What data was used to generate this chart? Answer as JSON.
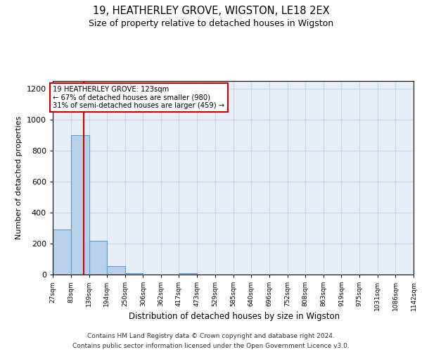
{
  "title": "19, HEATHERLEY GROVE, WIGSTON, LE18 2EX",
  "subtitle": "Size of property relative to detached houses in Wigston",
  "xlabel": "Distribution of detached houses by size in Wigston",
  "ylabel": "Number of detached properties",
  "property_size": 123,
  "annotation_lines": [
    "19 HEATHERLEY GROVE: 123sqm",
    "← 67% of detached houses are smaller (980)",
    "31% of semi-detached houses are larger (459) →"
  ],
  "bin_edges": [
    27,
    83,
    139,
    194,
    250,
    306,
    362,
    417,
    473,
    529,
    585,
    640,
    696,
    752,
    808,
    863,
    919,
    975,
    1031,
    1086,
    1142
  ],
  "bin_counts": [
    290,
    900,
    220,
    55,
    10,
    0,
    0,
    10,
    0,
    0,
    0,
    0,
    0,
    0,
    0,
    0,
    0,
    0,
    0,
    0
  ],
  "bar_color": "#b8d0e8",
  "bar_edge_color": "#5a9fd4",
  "red_line_color": "#cc0000",
  "annotation_box_color": "#ffffff",
  "annotation_box_edge": "#cc0000",
  "grid_color": "#c8d8e8",
  "background_color": "#e8eef6",
  "ylim": [
    0,
    1250
  ],
  "yticks": [
    0,
    200,
    400,
    600,
    800,
    1000,
    1200
  ],
  "footer_lines": [
    "Contains HM Land Registry data © Crown copyright and database right 2024.",
    "Contains public sector information licensed under the Open Government Licence v3.0."
  ]
}
